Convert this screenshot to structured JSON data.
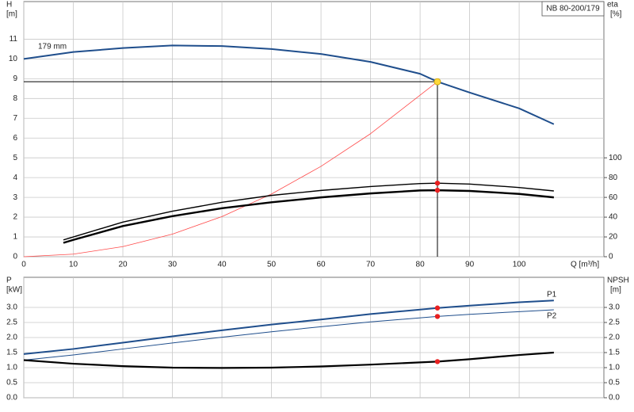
{
  "chart_data": [
    {
      "type": "line",
      "tag": "NB 80-200/179",
      "y_label": "H",
      "y_unit": "[m]",
      "y2_label": "eta",
      "y2_unit": "[%]",
      "x_label": "Q [m³/h]",
      "xlim": [
        0,
        117.1
      ],
      "xticks": [
        0,
        10,
        20,
        30,
        40,
        50,
        60,
        70,
        80,
        90,
        100
      ],
      "ylim": [
        0,
        12.9
      ],
      "yticks": [
        0,
        1,
        2,
        3,
        4,
        5,
        6,
        7,
        8,
        9,
        10,
        11
      ],
      "y2lim": [
        0,
        258
      ],
      "y2ticks": [
        0,
        20,
        40,
        60,
        80,
        100
      ],
      "grid": true,
      "duty_point": {
        "x": 83.5,
        "y": 8.85,
        "color": "#ffd83a"
      },
      "series": [
        {
          "name": "179 mm",
          "color": "#1f4e8c",
          "width": 2,
          "x": [
            0,
            10,
            20,
            30,
            40,
            50,
            60,
            70,
            80,
            83.5,
            90,
            100,
            107
          ],
          "values": [
            10.0,
            10.35,
            10.55,
            10.68,
            10.65,
            10.5,
            10.25,
            9.85,
            9.25,
            8.85,
            8.3,
            7.5,
            6.7
          ]
        },
        {
          "color": "#ff4a4a",
          "width": 0.8,
          "x": [
            0,
            10,
            20,
            30,
            40,
            50,
            60,
            70,
            83.5
          ],
          "values": [
            0,
            0.13,
            0.51,
            1.14,
            2.03,
            3.17,
            4.57,
            6.22,
            8.85
          ]
        },
        {
          "color": "#000000",
          "width": 1.4,
          "axis": "y2",
          "marker_color": "#e82020",
          "x": [
            8,
            10,
            20,
            30,
            40,
            50,
            60,
            70,
            80,
            83.5,
            90,
            100,
            107
          ],
          "values": [
            17,
            20,
            35,
            46,
            55,
            62,
            67,
            71,
            74,
            74.4,
            73.5,
            70,
            66.5
          ]
        },
        {
          "color": "#000000",
          "width": 2.4,
          "axis": "y2",
          "marker_color": "#e82020",
          "x": [
            8,
            10,
            20,
            30,
            40,
            50,
            60,
            70,
            80,
            83.5,
            90,
            100,
            107
          ],
          "values": [
            14,
            17,
            31,
            41,
            49,
            55,
            60,
            64,
            67,
            67.2,
            66.5,
            63.5,
            60
          ]
        }
      ]
    },
    {
      "type": "line",
      "y_label": "P",
      "y_unit": "[kW]",
      "y2_label": "NPSH",
      "y2_unit": "[m]",
      "xlim": [
        0,
        117.1
      ],
      "xticks": [
        0,
        10,
        20,
        30,
        40,
        50,
        60,
        70,
        80,
        90,
        100
      ],
      "ylim": [
        0,
        4
      ],
      "yticks": [
        {
          "value": 0,
          "label": "0.0"
        },
        {
          "value": 0.5,
          "label": "0.5"
        },
        {
          "value": 1,
          "label": "1.0"
        },
        {
          "value": 1.5,
          "label": "1.5"
        },
        {
          "value": 2,
          "label": "2.0"
        },
        {
          "value": 2.5,
          "label": "2.5"
        },
        {
          "value": 3,
          "label": "3.0"
        }
      ],
      "y2lim": [
        0,
        4
      ],
      "y2ticks": [
        {
          "value": 0,
          "label": "0.0"
        },
        {
          "value": 0.5,
          "label": "0.5"
        },
        {
          "value": 1,
          "label": "1.0"
        },
        {
          "value": 1.5,
          "label": "1.5"
        },
        {
          "value": 2,
          "label": "2.0"
        },
        {
          "value": 2.5,
          "label": "2.5"
        },
        {
          "value": 3,
          "label": "3.0"
        }
      ],
      "grid": true,
      "duty_point": {
        "x": 83.5
      },
      "series": [
        {
          "name": "P1",
          "color": "#1f4e8c",
          "width": 2,
          "marker_color": "#e82020",
          "x": [
            0,
            10,
            20,
            30,
            40,
            50,
            60,
            70,
            83.5,
            90,
            100,
            107
          ],
          "values": [
            1.45,
            1.62,
            1.83,
            2.04,
            2.24,
            2.43,
            2.6,
            2.78,
            2.98,
            3.06,
            3.17,
            3.23
          ]
        },
        {
          "name": "P2",
          "color": "#1f4e8c",
          "width": 1,
          "marker_color": "#e82020",
          "x": [
            0,
            10,
            20,
            30,
            40,
            50,
            60,
            70,
            83.5,
            90,
            100,
            107
          ],
          "values": [
            1.25,
            1.42,
            1.62,
            1.82,
            2.01,
            2.19,
            2.36,
            2.52,
            2.7,
            2.77,
            2.86,
            2.92
          ]
        },
        {
          "color": "#000000",
          "width": 2.2,
          "axis": "y2",
          "marker_color": "#e82020",
          "x": [
            0,
            10,
            20,
            30,
            40,
            50,
            60,
            70,
            83.5,
            90,
            100,
            107
          ],
          "values": [
            1.25,
            1.13,
            1.05,
            1.0,
            0.99,
            1.0,
            1.04,
            1.1,
            1.2,
            1.28,
            1.42,
            1.5
          ]
        }
      ]
    }
  ]
}
